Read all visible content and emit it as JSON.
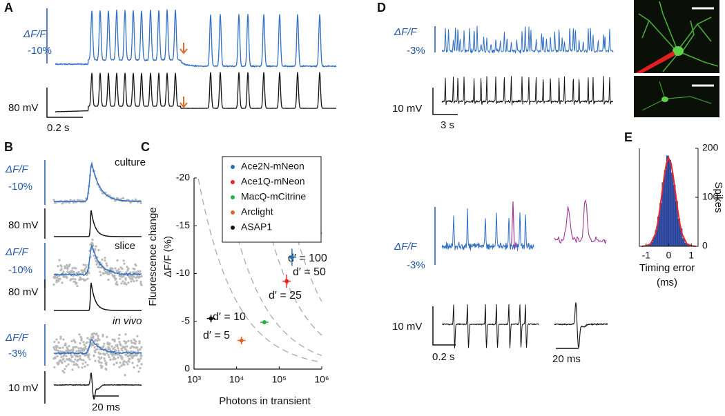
{
  "figure": {
    "A": {
      "label": "A",
      "dff": "ΔF/F",
      "dff_scale": "-10%",
      "mv_scale": "80 mV",
      "time_scale": "0.2 s"
    },
    "B": {
      "label": "B",
      "rows": [
        {
          "title": "culture",
          "dff": "ΔF/F",
          "dff_scale": "-10%",
          "mv_scale": "80 mV"
        },
        {
          "title": "slice",
          "dff": "ΔF/F",
          "dff_scale": "-10%",
          "mv_scale": "80 mV"
        },
        {
          "title": "in vivo",
          "dff": "ΔF/F",
          "dff_scale": "-3%",
          "mv_scale": "10 mV"
        }
      ],
      "time_scale": "20 ms"
    },
    "D": {
      "label": "D",
      "top": {
        "dff": "ΔF/F",
        "dff_scale": "-3%",
        "mv_scale": "10 mV",
        "time_scale": "3 s"
      },
      "bottom": {
        "dff": "ΔF/F",
        "dff_scale": "-3%",
        "mv_scale": "10 mV",
        "time_scale": "0.2 s",
        "zoom_time_scale": "20 ms"
      }
    }
  },
  "chart_data": [
    {
      "type": "scatter",
      "panel": "C",
      "xlabel": "Photons in transient",
      "ylabel": [
        "Fluorescence change",
        "ΔF/F (%)"
      ],
      "xlog": true,
      "xlim": [
        1000,
        1000000
      ],
      "xticks": [
        {
          "value": 1000,
          "label": "10³"
        },
        {
          "value": 10000,
          "label": "10⁴"
        },
        {
          "value": 100000,
          "label": "10⁵"
        },
        {
          "value": 1000000,
          "label": "10⁶"
        }
      ],
      "ylim": [
        0,
        -20
      ],
      "yticks": [
        0,
        -5,
        -10,
        -15,
        -20
      ],
      "series": [
        {
          "name": "Ace2N-mNeon",
          "color": "#2a6db5",
          "x": [
            200000
          ],
          "values": [
            -11.7
          ],
          "yerr": [
            0.9
          ]
        },
        {
          "name": "Ace1Q-mNeon",
          "color": "#e8262a",
          "x": [
            150000
          ],
          "values": [
            -9.2
          ],
          "yerr": [
            0.7
          ]
        },
        {
          "name": "MacQ-mCitrine",
          "color": "#27b04a",
          "x": [
            45000
          ],
          "values": [
            -4.9
          ],
          "yerr": [
            0.2
          ]
        },
        {
          "name": "Arclight",
          "color": "#e0682a",
          "x": [
            13000
          ],
          "values": [
            -3
          ],
          "yerr": [
            0.4
          ]
        },
        {
          "name": "ASAP1",
          "color": "#111111",
          "x": [
            2500
          ],
          "values": [
            -5.3
          ],
          "yerr": [
            0.4
          ]
        }
      ],
      "contours": [
        {
          "d": 100,
          "label": "d′ = 100"
        },
        {
          "d": 50,
          "label": "d′ = 50"
        },
        {
          "d": 25,
          "label": "d′ = 25"
        },
        {
          "d": 10,
          "label": "d′ = 10"
        },
        {
          "d": 5,
          "label": "d′ = 5"
        }
      ]
    },
    {
      "type": "histogram",
      "panel": "E",
      "xlabel": [
        "Timing error",
        "(ms)"
      ],
      "ylabel": "Spikes",
      "yaxis_side": "right",
      "color": "#3550a8",
      "bins": [
        -1.2,
        -1.1,
        -1.0,
        -0.9,
        -0.8,
        -0.7,
        -0.6,
        -0.5,
        -0.4,
        -0.3,
        -0.2,
        -0.1,
        0,
        0.1,
        0.2,
        0.3,
        0.4,
        0.5,
        0.6,
        0.7,
        0.8,
        0.9,
        1.0,
        1.1,
        1.2
      ],
      "counts": [
        0,
        0,
        1,
        3,
        8,
        18,
        33,
        60,
        88,
        130,
        155,
        185,
        176,
        150,
        125,
        92,
        56,
        36,
        16,
        7,
        3,
        1,
        0,
        0
      ],
      "fit": {
        "color": "#e8262a",
        "x": [
          -1.2,
          -1.0,
          -0.8,
          -0.6,
          -0.5,
          -0.4,
          -0.3,
          -0.2,
          -0.1,
          0,
          0.1,
          0.2,
          0.3,
          0.4,
          0.5,
          0.6,
          0.8,
          1.0,
          1.2
        ],
        "values": [
          0,
          1,
          5,
          24,
          45,
          74,
          109,
          143,
          170,
          180,
          170,
          143,
          109,
          74,
          45,
          24,
          5,
          1,
          0
        ]
      },
      "xlim": [
        -1.3,
        1.3
      ],
      "xticks": [
        -1,
        0,
        1
      ],
      "ylim": [
        0,
        200
      ],
      "yticks": [
        0,
        100,
        200
      ]
    }
  ]
}
